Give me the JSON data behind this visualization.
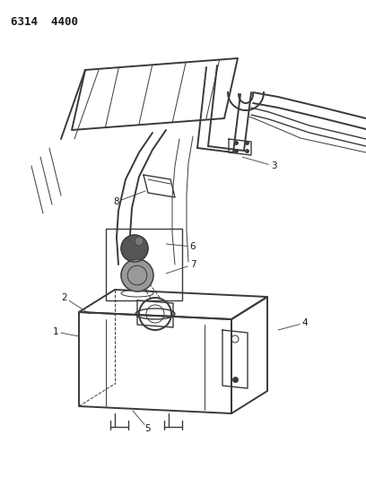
{
  "title": "6314  4400",
  "bg_color": "#ffffff",
  "line_color": "#3a3a3a",
  "text_color": "#1a1a1a",
  "title_fontsize": 9,
  "label_fontsize": 7.5,
  "figsize": [
    4.08,
    5.33
  ],
  "dpi": 100
}
